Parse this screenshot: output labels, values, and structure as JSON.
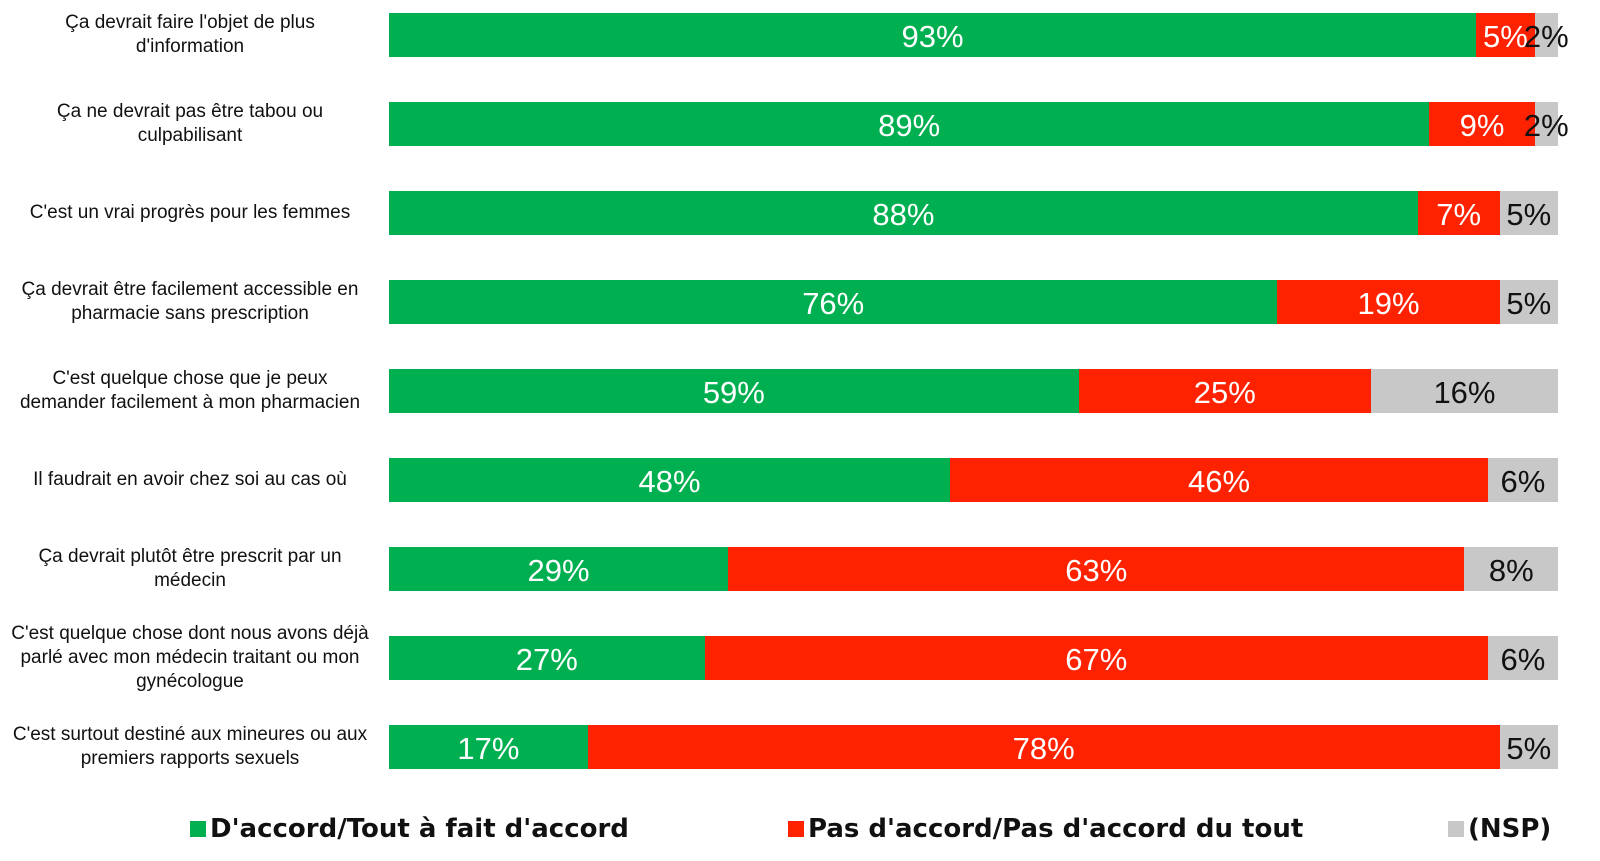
{
  "chart_data": {
    "type": "bar",
    "orientation": "horizontal",
    "stacked": true,
    "categories": [
      "Ça devrait faire l'objet de plus d'information",
      "Ça ne devrait pas être tabou ou culpabilisant",
      "C'est un vrai progrès pour les femmes",
      "Ça devrait être facilement accessible en pharmacie sans prescription",
      "C'est quelque chose que je peux demander facilement à mon pharmacien",
      "Il faudrait en avoir chez soi au cas où",
      "Ça devrait plutôt être prescrit par un médecin",
      "C'est quelque chose dont nous avons déjà parlé avec mon médecin traitant ou mon gynécologue",
      "C'est surtout destiné aux mineures ou aux premiers rapports sexuels"
    ],
    "series": [
      {
        "name": "D'accord/Tout à fait d'accord",
        "color": "#00b050",
        "values": [
          93,
          89,
          88,
          76,
          59,
          48,
          29,
          27,
          17
        ],
        "value_labels": [
          "93%",
          "89%",
          "88%",
          "76%",
          "59%",
          "48%",
          "29%",
          "27%",
          "17%"
        ]
      },
      {
        "name": "Pas d'accord/Pas d'accord du tout",
        "color": "#ff2200",
        "values": [
          5,
          9,
          7,
          19,
          25,
          46,
          63,
          67,
          78
        ],
        "value_labels": [
          "5%",
          "9%",
          "7%",
          "19%",
          "25%",
          "46%",
          "63%",
          "67%",
          "78%"
        ]
      },
      {
        "name": "(NSP)",
        "color": "#c8c8c8",
        "values": [
          2,
          2,
          5,
          5,
          16,
          6,
          8,
          6,
          5
        ],
        "value_labels": [
          "2%",
          "2%",
          "5%",
          "5%",
          "16%",
          "6%",
          "8%",
          "6%",
          "5%"
        ]
      }
    ],
    "legend": "bottom"
  }
}
